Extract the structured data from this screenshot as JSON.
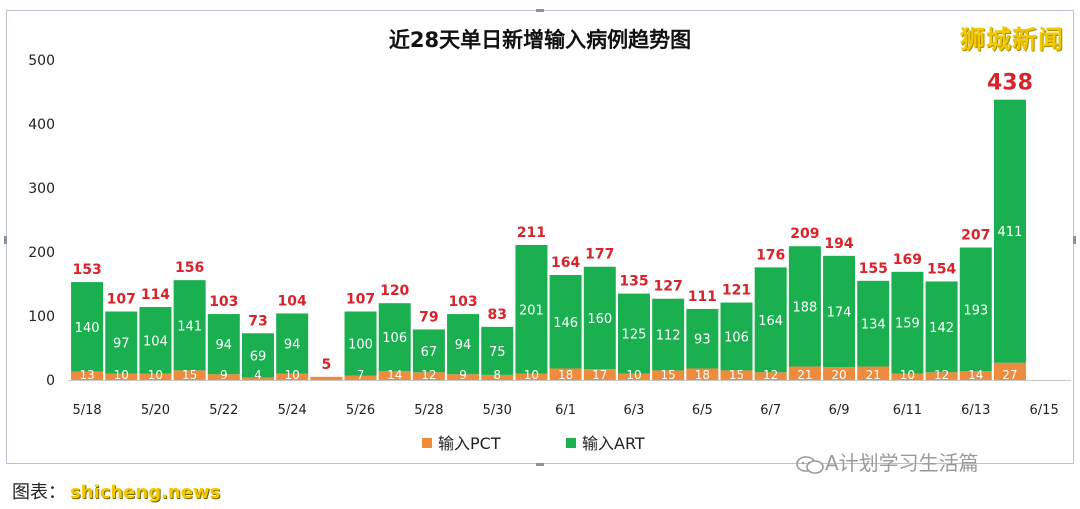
{
  "brand": "狮城新闻",
  "watermark": "A计划学习生活篇",
  "source": {
    "label": "图表：",
    "site": "shicheng.news"
  },
  "colors": {
    "pct": "#ef8b3c",
    "art": "#1aaf4f",
    "total_label": "#d9222a"
  },
  "chart_data": {
    "type": "bar",
    "stacked": true,
    "title": "近28天单日新增输入病例趋势图",
    "xlabel": "",
    "ylabel": "",
    "ylim": [
      0,
      500
    ],
    "yticks": [
      0,
      100,
      200,
      300,
      400,
      500
    ],
    "legend_position": "bottom",
    "grid": false,
    "categories": [
      "5/18",
      "5/19",
      "5/20",
      "5/21",
      "5/22",
      "5/23",
      "5/24",
      "5/25",
      "5/26",
      "5/27",
      "5/28",
      "5/29",
      "5/30",
      "5/31",
      "6/1",
      "6/2",
      "6/3",
      "6/4",
      "6/5",
      "6/6",
      "6/7",
      "6/8",
      "6/9",
      "6/10",
      "6/11",
      "6/12",
      "6/13",
      "6/14",
      "6/15"
    ],
    "xtick_labels": [
      "5/18",
      "5/20",
      "5/22",
      "5/24",
      "5/26",
      "5/28",
      "5/30",
      "6/1",
      "6/3",
      "6/5",
      "6/7",
      "6/9",
      "6/11",
      "6/13",
      "6/15"
    ],
    "series": [
      {
        "name": "输入PCT",
        "color": "#ef8b3c",
        "values": [
          13,
          10,
          10,
          15,
          9,
          4,
          10,
          5,
          7,
          14,
          12,
          9,
          8,
          10,
          18,
          17,
          10,
          15,
          18,
          15,
          12,
          21,
          20,
          21,
          10,
          12,
          14,
          27,
          null
        ],
        "labels": [
          "13",
          "10",
          "10",
          "15",
          "9",
          "4",
          "10",
          "",
          "7",
          "14",
          "12",
          "9",
          "8",
          "10",
          "18",
          "17",
          "10",
          "15",
          "18",
          "15",
          "12",
          "21",
          "20",
          "21",
          "10",
          "12",
          "14",
          "27",
          ""
        ]
      },
      {
        "name": "输入ART",
        "color": "#1aaf4f",
        "values": [
          140,
          97,
          104,
          141,
          94,
          69,
          94,
          0,
          100,
          106,
          67,
          94,
          75,
          201,
          146,
          160,
          125,
          112,
          93,
          106,
          164,
          188,
          174,
          134,
          159,
          142,
          193,
          411,
          null
        ],
        "labels": [
          "140",
          "97",
          "104",
          "141",
          "94",
          "69",
          "94",
          "",
          "100",
          "106",
          "67",
          "94",
          "75",
          "201",
          "146",
          "160",
          "125",
          "112",
          "93",
          "106",
          "164",
          "188",
          "174",
          "134",
          "159",
          "142",
          "193",
          "411",
          ""
        ]
      }
    ],
    "totals": [
      153,
      107,
      114,
      156,
      103,
      73,
      104,
      5,
      107,
      120,
      79,
      103,
      83,
      211,
      164,
      177,
      135,
      127,
      111,
      121,
      176,
      209,
      194,
      155,
      169,
      154,
      207,
      438,
      null
    ],
    "total_labels": [
      "153",
      "107",
      "114",
      "156",
      "103",
      "73",
      "104",
      "5",
      "107",
      "120",
      "79",
      "103",
      "83",
      "211",
      "164",
      "177",
      "135",
      "127",
      "111",
      "121",
      "176",
      "209",
      "194",
      "155",
      "169",
      "154",
      "207",
      "438",
      ""
    ]
  }
}
